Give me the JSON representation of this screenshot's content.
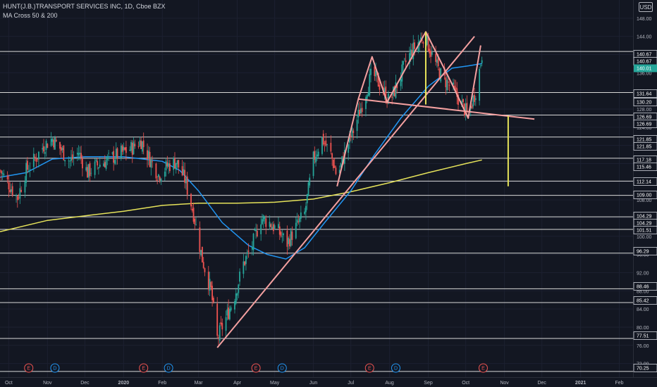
{
  "header": {
    "title": "HUNT(J.B.)TRANSPORT SERVICES INC, 1D, Cboe BZX",
    "subtitle": "MA Cross 50 & 200",
    "currency": "USD"
  },
  "colors": {
    "background": "#131722",
    "up_candle": "#26a69a",
    "down_candle": "#ef5350",
    "ma50": "#2196f3",
    "ma200": "#e6e35a",
    "pattern_lines": "#f4a0a0",
    "measure_lines": "#e6e35a",
    "horizontal_levels": "#d8d8d8",
    "last_price_badge": "#26a69a",
    "earnings_marker": "#ef5350",
    "dividend_marker": "#2196f3"
  },
  "chart_data": {
    "type": "candlestick",
    "x_range": [
      "2019-09-24",
      "2021-02-12"
    ],
    "ylim": [
      69,
      152
    ],
    "y_ticks": [
      72.0,
      76.0,
      80.0,
      84.0,
      88.0,
      92.0,
      96.0,
      100.0,
      104.0,
      108.0,
      112.0,
      116.0,
      120.0,
      124.0,
      128.0,
      132.0,
      136.0,
      140.0,
      144.0,
      148.0
    ],
    "x_ticks": [
      {
        "date": "2019-10-01",
        "label": "Oct"
      },
      {
        "date": "2019-11-01",
        "label": "Nov"
      },
      {
        "date": "2019-12-01",
        "label": "Dec"
      },
      {
        "date": "2020-01-01",
        "label": "2020"
      },
      {
        "date": "2020-02-01",
        "label": "Feb"
      },
      {
        "date": "2020-03-01",
        "label": "Mar"
      },
      {
        "date": "2020-04-01",
        "label": "Apr"
      },
      {
        "date": "2020-05-01",
        "label": "May"
      },
      {
        "date": "2020-06-01",
        "label": "Jun"
      },
      {
        "date": "2020-07-01",
        "label": "Jul"
      },
      {
        "date": "2020-08-01",
        "label": "Aug"
      },
      {
        "date": "2020-09-01",
        "label": "Sep"
      },
      {
        "date": "2020-10-01",
        "label": "Oct"
      },
      {
        "date": "2020-11-01",
        "label": "Nov"
      },
      {
        "date": "2020-12-01",
        "label": "Dec"
      },
      {
        "date": "2021-01-01",
        "label": "2021"
      },
      {
        "date": "2021-02-01",
        "label": "Feb"
      }
    ],
    "price_series": [
      [
        "2019-09-24",
        114.5
      ],
      [
        "2019-10-01",
        111.5
      ],
      [
        "2019-10-08",
        108.5
      ],
      [
        "2019-10-15",
        114.5
      ],
      [
        "2019-10-22",
        117.0
      ],
      [
        "2019-10-29",
        120.0
      ],
      [
        "2019-11-05",
        121.5
      ],
      [
        "2019-11-12",
        119.0
      ],
      [
        "2019-11-19",
        116.5
      ],
      [
        "2019-11-26",
        118.5
      ],
      [
        "2019-12-03",
        114.0
      ],
      [
        "2019-12-10",
        115.5
      ],
      [
        "2019-12-17",
        116.5
      ],
      [
        "2019-12-24",
        117.5
      ],
      [
        "2020-01-01",
        118.5
      ],
      [
        "2020-01-08",
        119.5
      ],
      [
        "2020-01-15",
        121.0
      ],
      [
        "2020-01-22",
        117.0
      ],
      [
        "2020-01-29",
        113.5
      ],
      [
        "2020-02-05",
        115.5
      ],
      [
        "2020-02-12",
        116.5
      ],
      [
        "2020-02-19",
        112.5
      ],
      [
        "2020-02-26",
        105.0
      ],
      [
        "2020-03-04",
        95.0
      ],
      [
        "2020-03-11",
        88.0
      ],
      [
        "2020-03-16",
        77.5
      ],
      [
        "2020-03-23",
        82.0
      ],
      [
        "2020-03-30",
        87.0
      ],
      [
        "2020-04-06",
        94.0
      ],
      [
        "2020-04-13",
        98.0
      ],
      [
        "2020-04-20",
        104.0
      ],
      [
        "2020-04-27",
        103.0
      ],
      [
        "2020-05-04",
        101.0
      ],
      [
        "2020-05-11",
        98.5
      ],
      [
        "2020-05-18",
        102.0
      ],
      [
        "2020-05-25",
        105.0
      ],
      [
        "2020-06-01",
        117.0
      ],
      [
        "2020-06-08",
        121.5
      ],
      [
        "2020-06-15",
        118.0
      ],
      [
        "2020-06-20",
        113.0
      ],
      [
        "2020-06-27",
        119.0
      ],
      [
        "2020-07-04",
        124.0
      ],
      [
        "2020-07-11",
        130.0
      ],
      [
        "2020-07-18",
        136.0
      ],
      [
        "2020-07-25",
        133.0
      ],
      [
        "2020-08-01",
        129.5
      ],
      [
        "2020-08-08",
        134.0
      ],
      [
        "2020-08-15",
        139.0
      ],
      [
        "2020-08-22",
        142.0
      ],
      [
        "2020-08-29",
        144.5
      ],
      [
        "2020-09-05",
        139.0
      ],
      [
        "2020-09-12",
        135.0
      ],
      [
        "2020-09-19",
        133.0
      ],
      [
        "2020-09-26",
        130.0
      ],
      [
        "2020-10-03",
        126.5
      ],
      [
        "2020-10-10",
        133.0
      ],
      [
        "2020-10-14",
        140.0
      ]
    ],
    "ma50": [
      [
        "2019-09-24",
        113.0
      ],
      [
        "2019-10-15",
        114.0
      ],
      [
        "2019-11-05",
        117.0
      ],
      [
        "2019-12-01",
        117.5
      ],
      [
        "2020-01-01",
        117.5
      ],
      [
        "2020-02-01",
        116.5
      ],
      [
        "2020-02-15",
        114.5
      ],
      [
        "2020-03-01",
        110.0
      ],
      [
        "2020-03-20",
        103.0
      ],
      [
        "2020-04-10",
        98.0
      ],
      [
        "2020-04-25",
        96.0
      ],
      [
        "2020-05-10",
        95.0
      ],
      [
        "2020-05-25",
        97.5
      ],
      [
        "2020-06-10",
        103.0
      ],
      [
        "2020-07-01",
        110.0
      ],
      [
        "2020-07-20",
        118.0
      ],
      [
        "2020-08-10",
        126.0
      ],
      [
        "2020-09-01",
        133.0
      ],
      [
        "2020-09-20",
        137.0
      ],
      [
        "2020-10-03",
        137.5
      ],
      [
        "2020-10-14",
        138.0
      ]
    ],
    "ma200": [
      [
        "2019-09-24",
        101.0
      ],
      [
        "2019-11-01",
        103.5
      ],
      [
        "2019-12-01",
        104.5
      ],
      [
        "2020-01-01",
        105.5
      ],
      [
        "2020-02-01",
        106.8
      ],
      [
        "2020-03-01",
        107.3
      ],
      [
        "2020-04-01",
        107.3
      ],
      [
        "2020-05-01",
        107.5
      ],
      [
        "2020-06-01",
        108.2
      ],
      [
        "2020-07-01",
        109.8
      ],
      [
        "2020-08-01",
        111.8
      ],
      [
        "2020-09-01",
        114.0
      ],
      [
        "2020-10-01",
        116.0
      ],
      [
        "2020-10-14",
        116.8
      ]
    ],
    "horizontal_levels": [
      140.67,
      131.64,
      126.69,
      121.85,
      117.18,
      112.14,
      109.0,
      104.29,
      101.51,
      96.29,
      88.46,
      85.42,
      77.51,
      70.25
    ],
    "level_labels": [
      "140.67",
      "140.67",
      "131.64",
      "130.20",
      "126.69",
      "126.69",
      "121.85",
      "121.85",
      "117.18",
      "115.46",
      "112.14",
      "109.00",
      "104.29",
      "104.29",
      "101.51",
      "96.29",
      "88.46",
      "85.42",
      "77.51",
      "70.25"
    ],
    "trendlines": [
      {
        "role": "uptrend",
        "points": [
          [
            "2020-03-16",
            75.5
          ],
          [
            "2020-10-08",
            144.0
          ]
        ]
      },
      {
        "role": "neckline",
        "points": [
          [
            "2020-07-07",
            130.2
          ],
          [
            "2020-11-25",
            125.8
          ]
        ]
      },
      {
        "role": "pattern",
        "points": [
          [
            "2020-06-20",
            111.0
          ],
          [
            "2020-07-07",
            130.2
          ],
          [
            "2020-07-18",
            139.5
          ],
          [
            "2020-07-30",
            129.5
          ],
          [
            "2020-08-30",
            145.0
          ],
          [
            "2020-09-20",
            133.5
          ],
          [
            "2020-10-03",
            126.0
          ],
          [
            "2020-10-13",
            142.0
          ]
        ]
      }
    ],
    "measure_lines": [
      {
        "date": "2020-08-30",
        "from": 129.0,
        "to": 145.0
      },
      {
        "date": "2020-11-04",
        "from": 126.5,
        "to": 111.0
      }
    ],
    "last_price": 140.01,
    "events": [
      {
        "date": "2019-10-17",
        "label": "E",
        "kind": "earnings"
      },
      {
        "date": "2019-11-07",
        "label": "D",
        "kind": "dividend"
      },
      {
        "date": "2020-01-17",
        "label": "E",
        "kind": "earnings"
      },
      {
        "date": "2020-02-06",
        "label": "D",
        "kind": "dividend"
      },
      {
        "date": "2020-04-16",
        "label": "E",
        "kind": "earnings"
      },
      {
        "date": "2020-05-07",
        "label": "D",
        "kind": "dividend"
      },
      {
        "date": "2020-07-16",
        "label": "E",
        "kind": "earnings"
      },
      {
        "date": "2020-08-06",
        "label": "D",
        "kind": "dividend"
      },
      {
        "date": "2020-10-15",
        "label": "E",
        "kind": "earnings"
      }
    ]
  }
}
